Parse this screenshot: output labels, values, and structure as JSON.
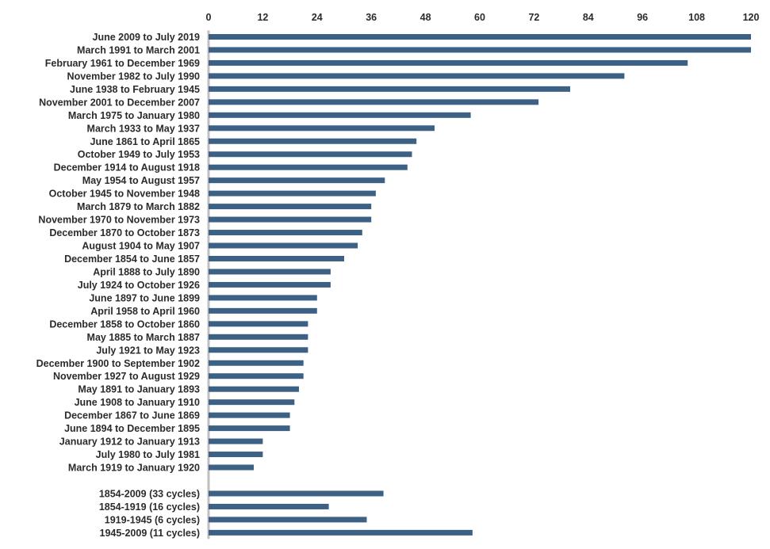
{
  "chart_data": {
    "type": "bar",
    "orientation": "horizontal",
    "title": "",
    "xlabel": "",
    "ylabel": "",
    "xlim": [
      0,
      120
    ],
    "xticks": [
      0,
      12,
      24,
      36,
      48,
      60,
      72,
      84,
      96,
      108,
      120
    ],
    "xtick_position": "top",
    "grid": false,
    "legend": "none",
    "bar_color": "#3d6185",
    "axis_color": "#bfbfbf",
    "groups": [
      {
        "categories": [
          "June 2009 to July 2019",
          "March 1991 to March 2001",
          "February 1961 to December 1969",
          "November 1982 to July 1990",
          "June 1938 to February 1945",
          "November 2001 to December 2007",
          "March 1975 to January 1980",
          "March 1933 to May 1937",
          "June 1861 to April 1865",
          "October 1949 to July 1953",
          "December 1914 to August 1918",
          "May 1954 to August 1957",
          "October 1945 to November 1948",
          "March 1879 to March 1882",
          "November 1970 to November 1973",
          "December 1870 to October 1873",
          "August 1904 to May 1907",
          "December 1854 to June 1857",
          "April 1888 to July 1890",
          "July 1924 to October 1926",
          "June 1897 to June 1899",
          "April 1958 to April 1960",
          "December 1858 to October 1860",
          "May 1885 to March 1887",
          "July 1921 to May 1923",
          "December 1900 to September 1902",
          "November 1927 to August 1929",
          "May 1891 to January 1893",
          "June 1908 to January 1910",
          "December 1867 to June 1869",
          "June 1894 to December 1895",
          "January 1912 to January 1913",
          "July 1980 to July 1981",
          "March 1919 to January 1920"
        ],
        "values": [
          121,
          120,
          106,
          92,
          80,
          73,
          58,
          50,
          46,
          45,
          44,
          39,
          37,
          36,
          36,
          34,
          33,
          30,
          27,
          27,
          24,
          24,
          22,
          22,
          22,
          21,
          21,
          20,
          19,
          18,
          18,
          12,
          12,
          10
        ]
      },
      {
        "categories": [
          "1854-2009 (33 cycles)",
          "1854-1919 (16 cycles)",
          "1919-1945 (6 cycles)",
          "1945-2009 (11 cycles)"
        ],
        "values": [
          38.7,
          26.6,
          35,
          58.4
        ]
      }
    ]
  }
}
